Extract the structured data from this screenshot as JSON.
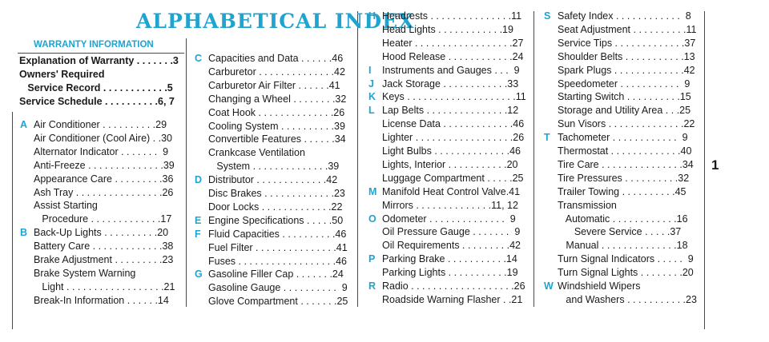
{
  "title": "ALPHABETICAL INDEX",
  "warranty_heading": "WARRANTY INFORMATION",
  "page_number": "1",
  "warranty_entries": [
    {
      "text": "Explanation of Warranty . . . . . . .3"
    },
    {
      "text": "Owners' Required"
    },
    {
      "text": "   Service Record . . . . . . . . . . . .5"
    },
    {
      "text": "Service Schedule . . . . . . . . . .6, 7"
    }
  ],
  "col1": [
    {
      "letter": "A",
      "text": "Air Conditioner . . . . . . . . . .29"
    },
    {
      "letter": "",
      "text": "Air Conditioner (Cool Aire) . .30"
    },
    {
      "letter": "",
      "text": "Alternator Indicator . . . . . . .  9"
    },
    {
      "letter": "",
      "text": "Anti-Freeze . . . . . . . . . . . . . .39"
    },
    {
      "letter": "",
      "text": "Appearance Care . . . . . . . . .36"
    },
    {
      "letter": "",
      "text": "Ash Tray . . . . . . . . . . . . . . . .26"
    },
    {
      "letter": "",
      "text": "Assist Starting"
    },
    {
      "letter": "",
      "text": "   Procedure . . . . . . . . . . . . .17"
    },
    {
      "letter": "B",
      "text": "Back-Up Lights . . . . . . . . . .20"
    },
    {
      "letter": "",
      "text": "Battery Care . . . . . . . . . . . . .38"
    },
    {
      "letter": "",
      "text": "Brake Adjustment . . . . . . . . .23"
    },
    {
      "letter": "",
      "text": "Brake System Warning"
    },
    {
      "letter": "",
      "text": "   Light . . . . . . . . . . . . . . . . . .21"
    },
    {
      "letter": "",
      "text": "Break-In Information . . . . . .14"
    }
  ],
  "col2": [
    {
      "letter": "C",
      "text": "Capacities and Data . . . . . .46"
    },
    {
      "letter": "",
      "text": "Carburetor . . . . . . . . . . . . . .42"
    },
    {
      "letter": "",
      "text": "Carburetor Air Filter . . . . . .41"
    },
    {
      "letter": "",
      "text": "Changing a Wheel . . . . . . . .32"
    },
    {
      "letter": "",
      "text": "Coat Hook . . . . . . . . . . . . . .26"
    },
    {
      "letter": "",
      "text": "Cooling System . . . . . . . . . .39"
    },
    {
      "letter": "",
      "text": "Convertible Features . . . . . .34"
    },
    {
      "letter": "",
      "text": "Crankcase Ventilation"
    },
    {
      "letter": "",
      "text": "   System . . . . . . . . . . . . . .39"
    },
    {
      "letter": "D",
      "text": "Distributor . . . . . . . . . . . . .42"
    },
    {
      "letter": "",
      "text": "Disc Brakes . . . . . . . . . . . . .23"
    },
    {
      "letter": "",
      "text": "Door Locks . . . . . . . . . . . . .22"
    },
    {
      "letter": "E",
      "text": "Engine Specifications . . . . .50"
    },
    {
      "letter": "F",
      "text": "Fluid Capacities . . . . . . . . . .46"
    },
    {
      "letter": "",
      "text": "Fuel Filter . . . . . . . . . . . . . . .41"
    },
    {
      "letter": "",
      "text": "Fuses . . . . . . . . . . . . . . . . . .46"
    },
    {
      "letter": "G",
      "text": "Gasoline Filler Cap . . . . . . .24"
    },
    {
      "letter": "",
      "text": "Gasoline Gauge . . . . . . . . . .  9"
    },
    {
      "letter": "",
      "text": "Glove Compartment . . . . . . .25"
    }
  ],
  "col3": [
    {
      "letter": "H",
      "text": "Headrests . . . . . . . . . . . . . . .11"
    },
    {
      "letter": "",
      "text": "Head Lights . . . . . . . . . . . .19"
    },
    {
      "letter": "",
      "text": "Heater . . . . . . . . . . . . . . . . . .27"
    },
    {
      "letter": "",
      "text": "Hood Release . . . . . . . . . . . .24"
    },
    {
      "letter": "I",
      "text": "Instruments and Gauges . . .  9"
    },
    {
      "letter": "J",
      "text": "Jack Storage . . . . . . . . . . . .33"
    },
    {
      "letter": "K",
      "text": "Keys . . . . . . . . . . . . . . . . . . . .11"
    },
    {
      "letter": "L",
      "text": "Lap Belts . . . . . . . . . . . . . . .12"
    },
    {
      "letter": "",
      "text": "License Data . . . . . . . . . . . . .46"
    },
    {
      "letter": "",
      "text": "Lighter . . . . . . . . . . . . . . . . . .26"
    },
    {
      "letter": "",
      "text": "Light Bulbs . . . . . . . . . . . . . .46"
    },
    {
      "letter": "",
      "text": "Lights, Interior . . . . . . . . . . .20"
    },
    {
      "letter": "",
      "text": "Luggage Compartment . . . . .25"
    },
    {
      "letter": "M",
      "text": "Manifold Heat Control Valve.41"
    },
    {
      "letter": "",
      "text": "Mirrors . . . . . . . . . . . . . .11, 12"
    },
    {
      "letter": "O",
      "text": "Odometer . . . . . . . . . . . . . .  9"
    },
    {
      "letter": "",
      "text": "Oil Pressure Gauge . . . . . . .  9"
    },
    {
      "letter": "",
      "text": "Oil Requirements . . . . . . . . .42"
    },
    {
      "letter": "P",
      "text": "Parking Brake . . . . . . . . . . .14"
    },
    {
      "letter": "",
      "text": "Parking Lights . . . . . . . . . . .19"
    },
    {
      "letter": "R",
      "text": "Radio . . . . . . . . . . . . . . . . . . .26"
    },
    {
      "letter": "",
      "text": "Roadside Warning Flasher . .21"
    }
  ],
  "col4": [
    {
      "letter": "S",
      "text": "Safety Index . . . . . . . . . . . .  8"
    },
    {
      "letter": "",
      "text": "Seat Adjustment . . . . . . . . . .11"
    },
    {
      "letter": "",
      "text": "Service Tips . . . . . . . . . . . . .37"
    },
    {
      "letter": "",
      "text": "Shoulder Belts . . . . . . . . . . .13"
    },
    {
      "letter": "",
      "text": "Spark Plugs . . . . . . . . . . . . .42"
    },
    {
      "letter": "",
      "text": "Speedometer . . . . . . . . . . .  9"
    },
    {
      "letter": "",
      "text": "Starting Switch . . . . . . . . . .15"
    },
    {
      "letter": "",
      "text": "Storage and Utility Area . . .25"
    },
    {
      "letter": "",
      "text": "Sun Visors . . . . . . . . . . . . . .22"
    },
    {
      "letter": "T",
      "text": "Tachometer . . . . . . . . . . . .  9"
    },
    {
      "letter": "",
      "text": "Thermostat . . . . . . . . . . . . .40"
    },
    {
      "letter": "",
      "text": "Tire Care . . . . . . . . . . . . . . .34"
    },
    {
      "letter": "",
      "text": "Tire Pressures . . . . . . . . . .32"
    },
    {
      "letter": "",
      "text": "Trailer Towing . . . . . . . . . .45"
    },
    {
      "letter": "",
      "text": "Transmission"
    },
    {
      "letter": "",
      "text": "   Automatic . . . . . . . . . . . .16"
    },
    {
      "letter": "",
      "text": "      Severe Service . . . . .37"
    },
    {
      "letter": "",
      "text": "   Manual . . . . . . . . . . . . . .18"
    },
    {
      "letter": "",
      "text": "Turn Signal Indicators . . . . .  9"
    },
    {
      "letter": "",
      "text": "Turn Signal Lights . . . . . . . .20"
    },
    {
      "letter": "W",
      "text": "Windshield Wipers"
    },
    {
      "letter": "",
      "text": "   and Washers . . . . . . . . . . .23"
    }
  ]
}
